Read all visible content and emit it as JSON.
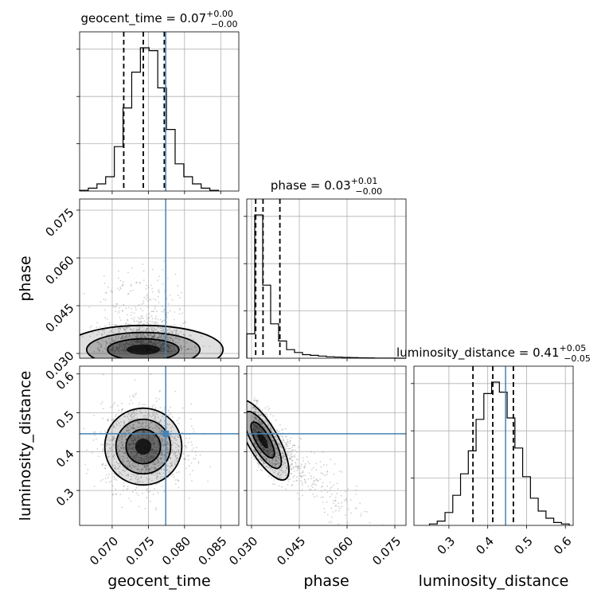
{
  "chart_data": {
    "type": "corner",
    "parameters": [
      {
        "key": "geocent_time",
        "label": "geocent_time",
        "range": [
          0.0655,
          0.0875
        ],
        "ticks": [
          "0.070",
          "0.075",
          "0.080",
          "0.085"
        ],
        "tick_values": [
          0.07,
          0.075,
          0.08,
          0.085
        ],
        "truth": 0.0774,
        "title": "geocent_time = 0.07",
        "sup": "+0.00",
        "sub": "−0.00",
        "quantiles": [
          0.0716,
          0.0743,
          0.0772
        ],
        "hist_edges": [
          0.0655,
          0.0667,
          0.0679,
          0.0691,
          0.0703,
          0.0715,
          0.0727,
          0.0739,
          0.0751,
          0.0763,
          0.0775,
          0.0787,
          0.0799,
          0.0811,
          0.0823,
          0.0835,
          0.0847
        ],
        "hist_counts": [
          0.5,
          2,
          5,
          10,
          31,
          58,
          83,
          100,
          98,
          72,
          43,
          19,
          10,
          5,
          2,
          0.5
        ]
      },
      {
        "key": "phase",
        "label": "phase",
        "range": [
          0.0285,
          0.0785
        ],
        "ticks": [
          "0.030",
          "0.045",
          "0.060",
          "0.075"
        ],
        "tick_values": [
          0.03,
          0.045,
          0.06,
          0.075
        ],
        "truth": null,
        "title": "phase = 0.03",
        "sup": "+0.01",
        "sub": "−0.00",
        "quantiles": [
          0.0313,
          0.0336,
          0.0389
        ],
        "hist_edges": [
          0.0285,
          0.031,
          0.0335,
          0.036,
          0.0385,
          0.041,
          0.0435,
          0.046,
          0.0485,
          0.051,
          0.0535,
          0.056,
          0.0585,
          0.061,
          0.0635,
          0.066,
          0.0685,
          0.071,
          0.0735,
          0.076,
          0.0785
        ],
        "hist_counts": [
          17,
          100,
          51,
          24,
          12,
          6,
          4,
          2.5,
          2,
          1.5,
          1,
          0.8,
          0.6,
          0.4,
          0.3,
          0.2,
          0.1,
          0.1,
          0.05,
          0
        ]
      },
      {
        "key": "luminosity_distance",
        "label": "luminosity_distance",
        "range": [
          0.21,
          0.62
        ],
        "ticks": [
          "0.3",
          "0.4",
          "0.5",
          "0.6"
        ],
        "tick_values": [
          0.3,
          0.4,
          0.5,
          0.6
        ],
        "truth": 0.446,
        "title": "luminosity_distance = 0.41",
        "sup": "+0.05",
        "sub": "−0.05",
        "quantiles": [
          0.362,
          0.413,
          0.466
        ],
        "hist_edges": [
          0.25,
          0.27,
          0.29,
          0.31,
          0.33,
          0.35,
          0.37,
          0.39,
          0.41,
          0.43,
          0.45,
          0.47,
          0.49,
          0.51,
          0.53,
          0.55,
          0.57,
          0.59,
          0.61
        ],
        "hist_counts": [
          1,
          3,
          9,
          21,
          36,
          52,
          74,
          92,
          100,
          93,
          75,
          54,
          34,
          19,
          10,
          5,
          2,
          1
        ]
      }
    ],
    "grid": true,
    "colors": {
      "hist": "#000000",
      "quantile": "#000000",
      "truth": "#4682b4",
      "points": "#7a7a7a"
    }
  }
}
